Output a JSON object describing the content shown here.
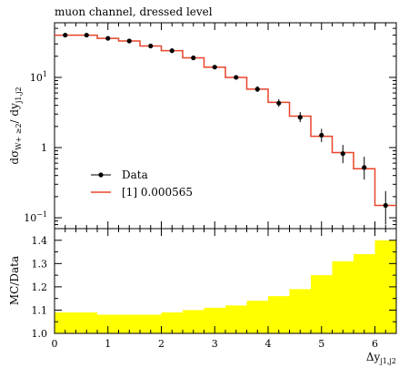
{
  "chart_data": [
    {
      "type": "line",
      "title": "muon channel, dressed level",
      "ylabel_parts": [
        "dσ",
        "W+ ≥2",
        "/ dy",
        "j1,j2"
      ],
      "xlabel_parts": [
        "Δy",
        "j1,j2"
      ],
      "yscale": "log",
      "ylim": [
        0.07,
        60
      ],
      "xlim": [
        0,
        6.4
      ],
      "y_ticks": [
        {
          "value": 10,
          "base": "10",
          "exp": "1"
        },
        {
          "value": 1,
          "base": "1",
          "exp": ""
        },
        {
          "value": 0.1,
          "base": "10",
          "exp": "−1"
        }
      ],
      "x_ticks": [
        "0",
        "1",
        "2",
        "3",
        "4",
        "5",
        "6"
      ],
      "bin_edges": [
        0,
        0.4,
        0.8,
        1.2,
        1.6,
        2.0,
        2.4,
        2.8,
        3.2,
        3.6,
        4.0,
        4.4,
        4.8,
        5.2,
        5.6,
        6.0,
        6.4
      ],
      "series": [
        {
          "name": "Data",
          "color": "#000000",
          "x": [
            0.2,
            0.6,
            1.0,
            1.4,
            1.8,
            2.2,
            2.6,
            3.0,
            3.4,
            3.8,
            4.2,
            4.6,
            5.0,
            5.4,
            5.8,
            6.2
          ],
          "y": [
            40,
            40,
            36,
            33,
            28,
            24,
            19,
            14,
            10,
            6.8,
            4.3,
            2.7,
            1.5,
            0.82,
            0.52,
            0.15
          ],
          "y_err_low": [
            1.5,
            1.5,
            1.4,
            1.3,
            1.1,
            1.0,
            0.8,
            0.7,
            0.7,
            0.6,
            0.5,
            0.4,
            0.3,
            0.22,
            0.17,
            0.07
          ],
          "y_err_high": [
            1.5,
            1.5,
            1.4,
            1.3,
            1.1,
            1.0,
            0.8,
            0.7,
            0.7,
            0.7,
            0.6,
            0.5,
            0.35,
            0.27,
            0.22,
            0.09
          ]
        },
        {
          "name": "[1] 0.000565",
          "color": "#e8432a",
          "y": [
            40,
            40,
            36,
            33,
            28,
            24,
            19,
            14,
            10,
            6.8,
            4.4,
            2.8,
            1.45,
            0.85,
            0.5,
            0.15
          ]
        }
      ],
      "legend": "lower-left"
    },
    {
      "type": "area",
      "ylabel": "MC/Data",
      "xlabel_parts": [
        "Δy",
        "j1,j2"
      ],
      "ylim": [
        1.0,
        1.45
      ],
      "xlim": [
        0,
        6.4
      ],
      "y_ticks": [
        "1.0",
        "1.1",
        "1.2",
        "1.3",
        "1.4"
      ],
      "x_ticks": [
        "0",
        "1",
        "2",
        "3",
        "4",
        "5",
        "6"
      ],
      "band_color": "#ffff00",
      "bin_edges": [
        0,
        0.4,
        0.8,
        1.2,
        1.6,
        2.0,
        2.4,
        2.8,
        3.2,
        3.6,
        4.0,
        4.4,
        4.8,
        5.2,
        5.6,
        6.0,
        6.4
      ],
      "band_upper": [
        1.09,
        1.09,
        1.08,
        1.08,
        1.08,
        1.09,
        1.1,
        1.11,
        1.12,
        1.14,
        1.16,
        1.19,
        1.25,
        1.31,
        1.34,
        1.4
      ]
    }
  ]
}
